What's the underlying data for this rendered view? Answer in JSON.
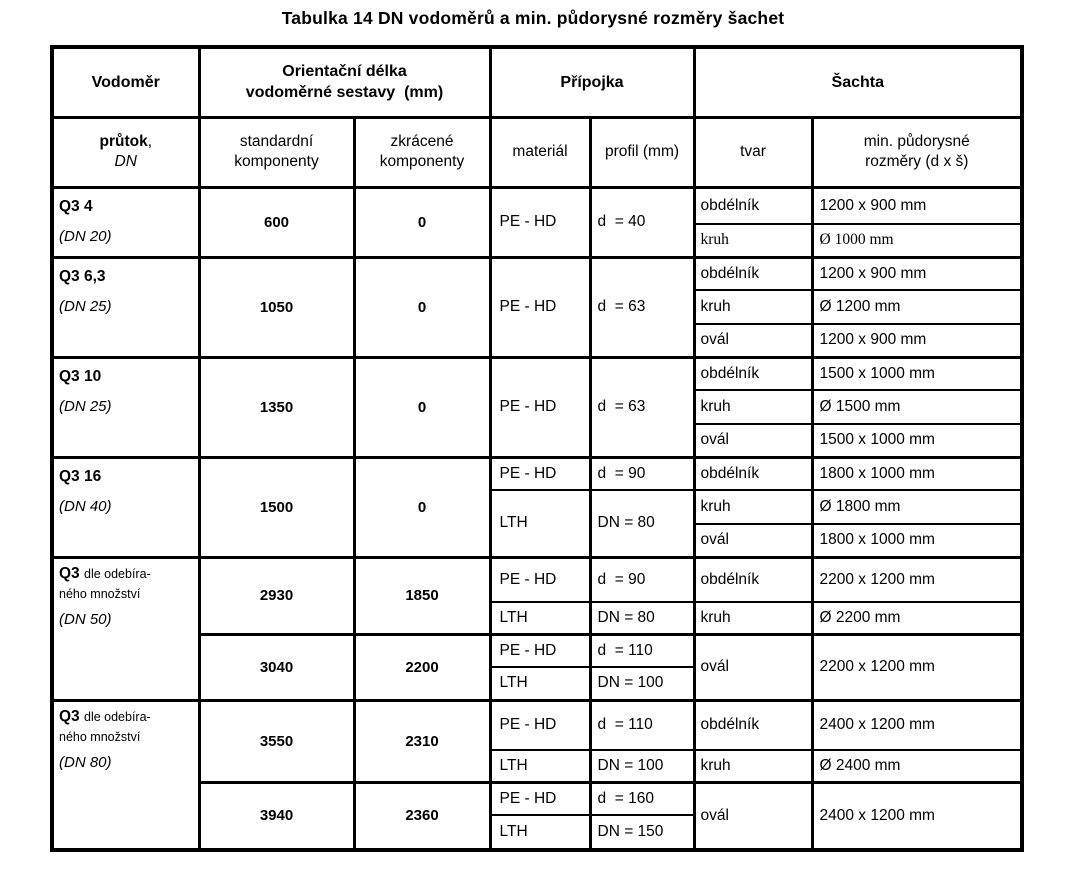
{
  "title": "Tabulka 14 DN vodoměrů a min. půdorysné rozměry šachet",
  "header": {
    "vodomer": "Vodoměr",
    "delka_l1": "Orientační délka",
    "delka_l2": "vodoměrné sestavy  (mm)",
    "pripojka": "Přípojka",
    "sachta": "Šachta",
    "prutok": "průtok",
    "prutok_sep": ",",
    "dn": "DN",
    "standardni_l1": "standardní",
    "standardni_l2": "komponenty",
    "zkracene_l1": "zkrácené",
    "zkracene_l2": "komponenty",
    "material": "materiál",
    "profil": "profil (mm)",
    "tvar": "tvar",
    "rozmery_l1": "min. půdorysné",
    "rozmery_l2": "rozměry (d x š)"
  },
  "groups": [
    {
      "label_main": "Q3 4",
      "label_dn": "(DN 20)",
      "standard": "600",
      "zkracene": "0",
      "material": "PE - HD",
      "profil": "d  = 40",
      "shafts": [
        {
          "tvar": "obdélník",
          "rozmer": "1200 x 900 mm"
        },
        {
          "tvar": "kruh",
          "rozmer": "Ø 1000 mm"
        }
      ]
    },
    {
      "label_main": "Q3 6,3",
      "label_dn": "(DN 25)",
      "standard": "1050",
      "zkracene": "0",
      "material": "PE - HD",
      "profil": "d  = 63",
      "shafts": [
        {
          "tvar": "obdélník",
          "rozmer": "1200 x 900 mm"
        },
        {
          "tvar": "kruh",
          "rozmer": "Ø 1200 mm"
        },
        {
          "tvar": "ovál",
          "rozmer": "1200 x 900 mm"
        }
      ]
    },
    {
      "label_main": "Q3 10",
      "label_dn": "(DN 25)",
      "standard": "1350",
      "zkracene": "0",
      "material": "PE - HD",
      "profil": "d  = 63",
      "shafts": [
        {
          "tvar": "obdélník",
          "rozmer": "1500 x 1000 mm"
        },
        {
          "tvar": "kruh",
          "rozmer": "Ø 1500 mm"
        },
        {
          "tvar": "ovál",
          "rozmer": "1500 x 1000 mm"
        }
      ]
    },
    {
      "label_main": "Q3 16",
      "label_dn": "(DN 40)",
      "standard": "1500",
      "zkracene": "0",
      "connections": [
        {
          "material": "PE - HD",
          "profil": "d  = 90"
        },
        {
          "material": "LTH",
          "profil": "DN = 80"
        }
      ],
      "shafts": [
        {
          "tvar": "obdélník",
          "rozmer": "1800 x 1000 mm"
        },
        {
          "tvar": "kruh",
          "rozmer": "Ø 1800 mm"
        },
        {
          "tvar": "ovál",
          "rozmer": "1800 x 1000 mm"
        }
      ]
    },
    {
      "label_main": "Q3",
      "label_small_l1": "dle odebíra-",
      "label_small_l2": "ného množství",
      "label_dn": "(DN 50)",
      "subs": [
        {
          "standard": "2930",
          "zkracene": "1850",
          "connections": [
            {
              "material": "PE - HD",
              "profil": "d  = 90"
            },
            {
              "material": "LTH",
              "profil": "DN = 80"
            }
          ],
          "shafts": [
            {
              "tvar": "obdélník",
              "rozmer": "2200 x 1200 mm"
            },
            {
              "tvar": "kruh",
              "rozmer": "Ø 2200 mm"
            }
          ]
        },
        {
          "standard": "3040",
          "zkracene": "2200",
          "connections": [
            {
              "material": "PE - HD",
              "profil": "d  = 110"
            },
            {
              "material": "LTH",
              "profil": "DN = 100"
            }
          ],
          "shafts": [
            {
              "tvar": "ovál",
              "rozmer": "2200 x 1200 mm"
            }
          ]
        }
      ]
    },
    {
      "label_main": "Q3",
      "label_small_l1": "dle odebíra-",
      "label_small_l2": "ného množství",
      "label_dn": "(DN 80)",
      "subs": [
        {
          "standard": "3550",
          "zkracene": "2310",
          "connections": [
            {
              "material": "PE - HD",
              "profil": "d  = 110"
            },
            {
              "material": "LTH",
              "profil": "DN = 100"
            }
          ],
          "shafts": [
            {
              "tvar": "obdélník",
              "rozmer": "2400 x 1200 mm"
            },
            {
              "tvar": "kruh",
              "rozmer": "Ø 2400 mm"
            }
          ]
        },
        {
          "standard": "3940",
          "zkracene": "2360",
          "connections": [
            {
              "material": "PE - HD",
              "profil": "d  = 160"
            },
            {
              "material": "LTH",
              "profil": "DN = 150"
            }
          ],
          "shafts": [
            {
              "tvar": "ovál",
              "rozmer": "2400 x 1200 mm"
            }
          ]
        }
      ]
    }
  ]
}
